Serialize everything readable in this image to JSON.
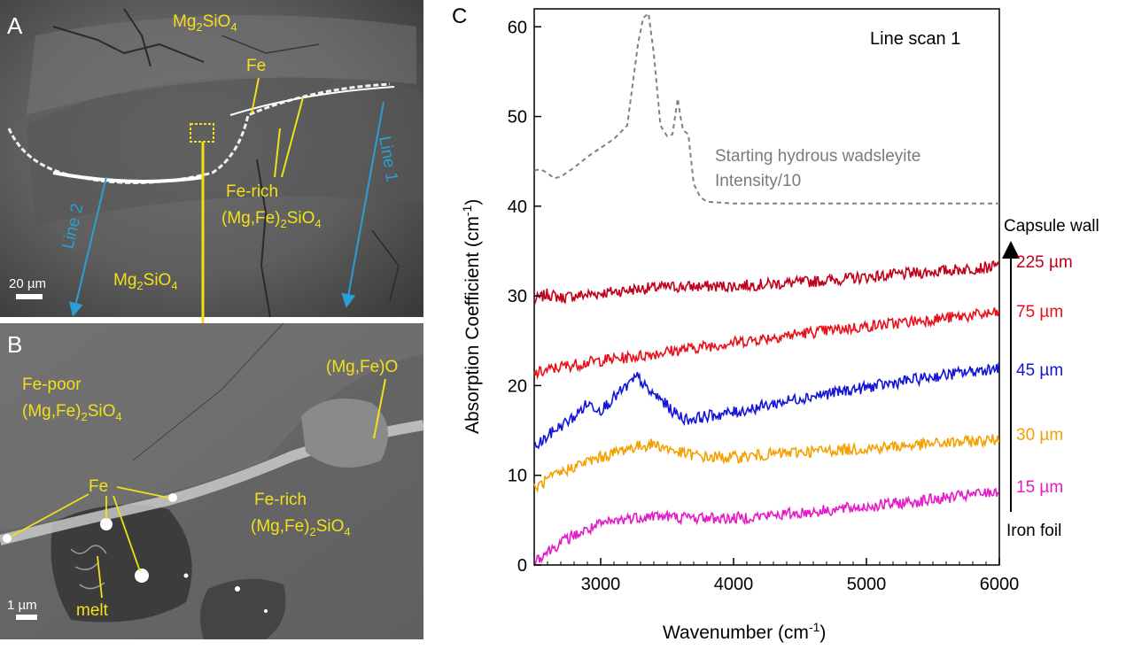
{
  "panel_a": {
    "letter": "A",
    "labels": {
      "mg2sio4_top": "Mg2SiO4",
      "fe": "Fe",
      "fe_rich_line1": "Fe-rich",
      "fe_rich_line2": "(Mg,Fe)2SiO4",
      "mg2sio4_bottom": "Mg2SiO4",
      "line1": "Line 1",
      "line2": "Line 2",
      "scale": "20 µm"
    }
  },
  "panel_b": {
    "letter": "B",
    "labels": {
      "fe_poor_line1": "Fe-poor",
      "fe_poor_line2": "(Mg,Fe)2SiO4",
      "mgfeo": "(Mg,Fe)O",
      "fe": "Fe",
      "fe_rich_line1": "Fe-rich",
      "fe_rich_line2": "(Mg,Fe)2SiO4",
      "melt": "melt",
      "scale": "1 µm"
    }
  },
  "panel_c": {
    "letter": "C",
    "scan_label": "Line scan 1",
    "reference_label_line1": "Starting hydrous wadsleyite",
    "reference_label_line2": "Intensity/10",
    "capsule_wall": "Capsule wall",
    "iron_foil": "Iron foil",
    "xlabel": "Wavenumber (cm-1)",
    "ylabel": "Absorption Coefficient (cm-1)"
  },
  "colors": {
    "label_yellow": "#f2e01a",
    "line_blue": "#2a9fd6",
    "axis": "#000000"
  },
  "chart_data": {
    "type": "line",
    "title": "",
    "xlabel": "Wavenumber (cm-1)",
    "ylabel": "Absorption Coefficient (cm-1)",
    "xlim": [
      2500,
      6000
    ],
    "ylim": [
      0,
      62
    ],
    "x_ticks": [
      3000,
      4000,
      5000,
      6000
    ],
    "y_ticks": [
      0,
      10,
      20,
      30,
      40,
      50,
      60
    ],
    "grid": false,
    "series": [
      {
        "name": "225 µm",
        "color": "#c0001a",
        "x": [
          2500,
          2600,
          2700,
          2800,
          3000,
          3300,
          3500,
          4000,
          4500,
          5000,
          5500,
          6000
        ],
        "y": [
          29.5,
          30.2,
          29.8,
          30.0,
          30.3,
          30.8,
          31.0,
          31.1,
          31.5,
          32.1,
          32.7,
          33.3
        ]
      },
      {
        "name": "75 µm",
        "color": "#e8101a",
        "x": [
          2500,
          2700,
          3000,
          3300,
          3500,
          4000,
          4500,
          5000,
          5500,
          6000
        ],
        "y": [
          21.3,
          22.1,
          22.8,
          23.3,
          23.8,
          24.8,
          25.8,
          26.6,
          27.4,
          28.1
        ]
      },
      {
        "name": "45 µm",
        "color": "#1414d8",
        "x": [
          2500,
          2650,
          2800,
          2900,
          3000,
          3150,
          3280,
          3350,
          3450,
          3550,
          3650,
          3800,
          4000,
          4500,
          5000,
          5500,
          6000
        ],
        "y": [
          13.0,
          15.0,
          16.5,
          18.0,
          17.3,
          19.3,
          21.0,
          19.5,
          18.5,
          17.0,
          16.2,
          16.6,
          17.0,
          18.6,
          19.8,
          21.0,
          22.0
        ]
      },
      {
        "name": "30 µm",
        "color": "#f5a000",
        "x": [
          2500,
          2600,
          2800,
          3000,
          3200,
          3400,
          3600,
          3800,
          4000,
          4500,
          5000,
          5500,
          6000
        ],
        "y": [
          8.5,
          9.5,
          11.0,
          12.0,
          13.0,
          13.5,
          12.5,
          12.0,
          12.0,
          12.6,
          13.0,
          13.5,
          14.0
        ]
      },
      {
        "name": "15 µm",
        "color": "#e61ac8",
        "x": [
          2500,
          2600,
          2700,
          2800,
          3000,
          3200,
          3400,
          3600,
          4000,
          4500,
          5000,
          5500,
          6000
        ],
        "y": [
          0.5,
          1.5,
          2.5,
          3.3,
          4.5,
          5.2,
          5.5,
          5.3,
          5.2,
          5.8,
          6.5,
          7.3,
          8.2
        ]
      },
      {
        "name": "Starting hydrous wadsleyite Intensity/10",
        "color": "#808080",
        "dashed": true,
        "x": [
          2500,
          2550,
          2600,
          2650,
          2700,
          2800,
          2900,
          3000,
          3100,
          3200,
          3280,
          3320,
          3360,
          3400,
          3450,
          3500,
          3540,
          3580,
          3600,
          3620,
          3660,
          3700,
          3750,
          3800,
          4000,
          4500,
          5000,
          5500,
          6000
        ],
        "y": [
          44.0,
          44.1,
          43.7,
          43.1,
          43.3,
          44.3,
          45.5,
          46.5,
          47.5,
          49.0,
          58.0,
          61.0,
          61.5,
          57.0,
          49.0,
          47.8,
          48.0,
          52.0,
          50.0,
          48.5,
          48.0,
          42.5,
          41.0,
          40.5,
          40.3,
          40.3,
          40.3,
          40.3,
          40.3
        ]
      }
    ]
  }
}
